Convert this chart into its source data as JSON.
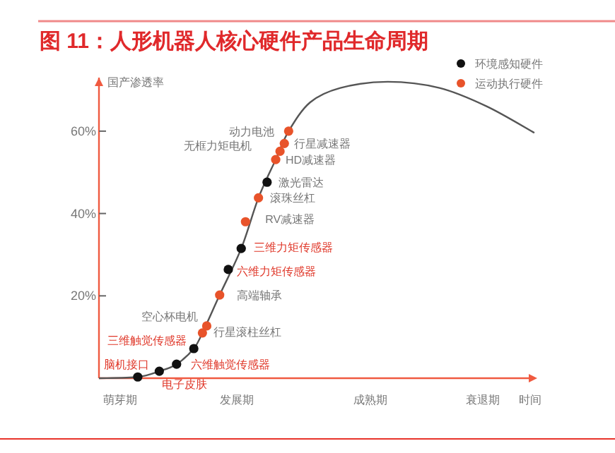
{
  "chart_data": {
    "type": "line",
    "title": "图 11：人形机器人核心硬件产品生命周期",
    "xlabel": "时间",
    "ylabel": "国产渗透率",
    "ylim": [
      0,
      73
    ],
    "yticks": [
      {
        "value": 20,
        "label": "20%"
      },
      {
        "value": 40,
        "label": "40%"
      },
      {
        "value": 60,
        "label": "60%"
      }
    ],
    "legend": "top right",
    "categories": [
      null,
      null,
      null,
      null,
      null,
      "萌芽期",
      null,
      null,
      null,
      null,
      null,
      null,
      null,
      null,
      null,
      null,
      null,
      null,
      null,
      null,
      null,
      null,
      null,
      null,
      null,
      null,
      null,
      null,
      null,
      null,
      null,
      null,
      "发展期",
      null,
      null,
      null,
      null,
      null,
      null,
      null,
      null,
      null,
      null,
      null,
      null,
      null,
      null,
      null,
      null,
      null,
      null,
      null,
      null,
      null,
      null,
      null,
      null,
      null,
      null,
      null,
      null,
      null,
      null,
      "成熟期",
      null,
      null,
      null,
      null,
      null,
      null,
      null,
      null,
      null,
      null,
      null,
      null,
      null,
      null,
      null,
      null,
      null,
      null,
      null,
      null,
      null,
      null,
      null,
      null,
      null,
      "衰退期",
      null,
      null,
      null,
      null,
      null,
      null,
      null,
      null,
      null,
      null,
      null,
      null,
      null
    ],
    "series": [
      {
        "color": "#555555",
        "values": [
          0,
          null,
          null,
          null,
          null,
          null,
          null,
          null,
          null,
          0.3,
          null,
          null,
          null,
          null,
          1.7,
          null,
          null,
          null,
          3.4,
          null,
          null,
          null,
          7.2,
          null,
          11,
          null,
          null,
          null,
          20.2,
          null,
          null,
          null,
          null,
          31.5,
          null,
          null,
          null,
          43.8,
          null,
          null,
          null,
          53.1,
          null,
          null,
          60,
          null,
          null,
          null,
          null,
          67,
          null,
          null,
          null,
          null,
          null,
          null,
          70.5,
          null,
          null,
          null,
          null,
          null,
          null,
          null,
          null,
          null,
          null,
          72,
          null,
          null,
          null,
          null,
          null,
          null,
          null,
          null,
          null,
          null,
          null,
          70.5,
          null,
          null,
          null,
          null,
          null,
          null,
          null,
          null,
          null,
          null,
          66,
          null,
          null,
          null,
          null,
          null,
          null,
          null,
          null,
          null,
          null,
          59.6,
          null
        ]
      },
      {
        "type": "scatter",
        "name": "环境感知硬件",
        "color": "#111111",
        "values": [
          null,
          null,
          null,
          null,
          null,
          null,
          null,
          null,
          null,
          0.3,
          null,
          null,
          null,
          null,
          1.7,
          null,
          null,
          null,
          3.4,
          null,
          null,
          null,
          7.2,
          null,
          null,
          null,
          null,
          null,
          null,
          null,
          26.4,
          null,
          null,
          31.5,
          null,
          null,
          null,
          null,
          null,
          47.6,
          null,
          null,
          null,
          null,
          null,
          null,
          null,
          null,
          null,
          null,
          null,
          null,
          null,
          null,
          null,
          null,
          null,
          null,
          null,
          null,
          null,
          null,
          null,
          null,
          null,
          null,
          null,
          null,
          null,
          null,
          null,
          null,
          null,
          null,
          null,
          null,
          null,
          null,
          null,
          null,
          null,
          null,
          null,
          null,
          null,
          null,
          null,
          null,
          null,
          null,
          null,
          null,
          null,
          null,
          null,
          null,
          null,
          null,
          null,
          null,
          null,
          null,
          null
        ]
      },
      {
        "type": "scatter",
        "name": "运动执行硬件",
        "color": "#e8532a",
        "values": [
          null,
          null,
          null,
          null,
          null,
          null,
          null,
          null,
          null,
          null,
          null,
          null,
          null,
          null,
          null,
          null,
          null,
          null,
          null,
          null,
          null,
          null,
          null,
          null,
          11,
          12.7,
          null,
          null,
          20.2,
          null,
          null,
          null,
          null,
          null,
          38,
          null,
          null,
          43.8,
          null,
          null,
          null,
          53.1,
          55.1,
          57,
          60,
          null,
          null,
          null,
          null,
          null,
          null,
          null,
          null,
          null,
          null,
          null,
          null,
          null,
          null,
          null,
          null,
          null,
          null,
          null,
          null,
          null,
          null,
          null,
          null,
          null,
          null,
          null,
          null,
          null,
          null,
          null,
          null,
          null,
          null,
          null,
          null,
          null,
          null,
          null,
          null,
          null,
          null,
          null,
          null,
          null,
          null,
          null,
          null,
          null,
          null,
          null,
          null,
          null,
          null,
          null,
          null,
          null,
          null
        ]
      }
    ],
    "annotations": [
      "动力电池",
      "行星减速器",
      "无框力矩电机",
      "HD减速器",
      "激光雷达",
      "滚珠丝杠",
      "RV减速器",
      "三维力矩传感器",
      "六维力矩传感器",
      "高端轴承",
      "空心杯电机",
      "行星滚柱丝杠",
      "三维触觉传感器",
      "六维触觉传感器",
      "电子皮肤",
      "脑机接口"
    ]
  }
}
